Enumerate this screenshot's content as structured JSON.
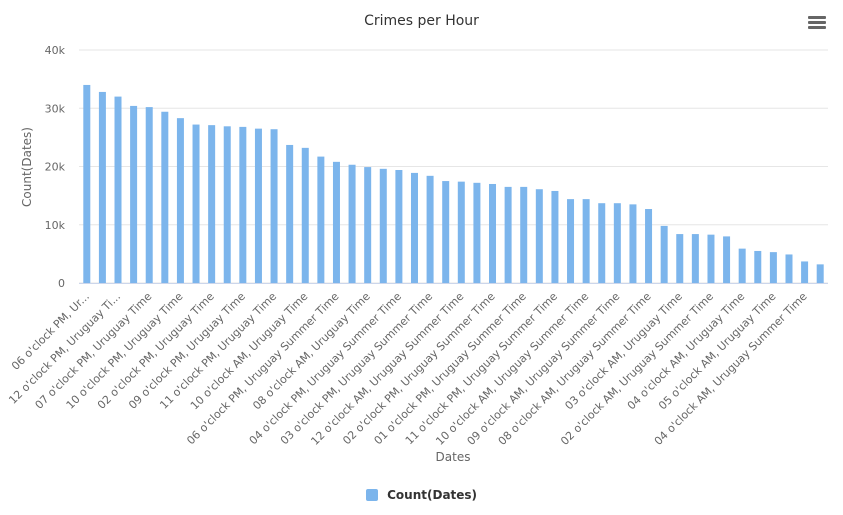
{
  "chart_data": {
    "type": "bar",
    "title": "Crimes per Hour",
    "xlabel": "Dates",
    "ylabel": "Count(Dates)",
    "ylim": [
      0,
      40000
    ],
    "yticks": [
      {
        "value": 0,
        "label": "0"
      },
      {
        "value": 10000,
        "label": "10k"
      },
      {
        "value": 20000,
        "label": "20k"
      },
      {
        "value": 30000,
        "label": "30k"
      },
      {
        "value": 40000,
        "label": "40k"
      }
    ],
    "grid": true,
    "legend_position": "bottom-center",
    "color": "#7cb5ec",
    "categories": [
      "06 o'clock PM, Ur...",
      "",
      "12 o'clock PM, Uruguay Ti...",
      "",
      "07 o'clock PM, Uruguay Time",
      "",
      "10 o'clock PM, Uruguay Time",
      "",
      "02 o'clock PM, Uruguay Time",
      "",
      "09 o'clock PM, Uruguay Time",
      "",
      "11 o'clock PM, Uruguay Time",
      "",
      "10 o'clock AM, Uruguay Time",
      "",
      "06 o'clock PM, Uruguay Summer Time",
      "",
      "08 o'clock AM, Uruguay Time",
      "",
      "04 o'clock PM, Uruguay Summer Time",
      "",
      "03 o'clock PM, Uruguay Summer Time",
      "",
      "12 o'clock AM, Uruguay Summer Time",
      "",
      "02 o'clock PM, Uruguay Summer Time",
      "",
      "01 o'clock PM, Uruguay Summer Time",
      "",
      "11 o'clock PM, Uruguay Summer Time",
      "",
      "10 o'clock AM, Uruguay Summer Time",
      "",
      "09 o'clock AM, Uruguay Summer Time",
      "",
      "08 o'clock AM, Uruguay Summer Time",
      "",
      "03 o'clock AM, Uruguay Time",
      "",
      "02 o'clock AM, Uruguay Summer Time",
      "",
      "04 o'clock AM, Uruguay Time",
      "",
      "05 o'clock AM, Uruguay Time",
      "",
      "04 o'clock AM, Uruguay Summer Time",
      ""
    ],
    "series": [
      {
        "name": "Count(Dates)",
        "values": [
          34000,
          32800,
          32000,
          30400,
          30200,
          29400,
          28300,
          27200,
          27100,
          26900,
          26800,
          26500,
          26400,
          23700,
          23200,
          21700,
          20800,
          20300,
          19900,
          19600,
          19400,
          18900,
          18400,
          17500,
          17400,
          17200,
          17000,
          16500,
          16500,
          16100,
          15800,
          14400,
          14400,
          13700,
          13700,
          13500,
          12700,
          9800,
          8400,
          8400,
          8300,
          8000,
          5900,
          5500,
          5300,
          4900,
          3700,
          3200
        ]
      }
    ]
  },
  "legend": {
    "label": "Count(Dates)"
  }
}
